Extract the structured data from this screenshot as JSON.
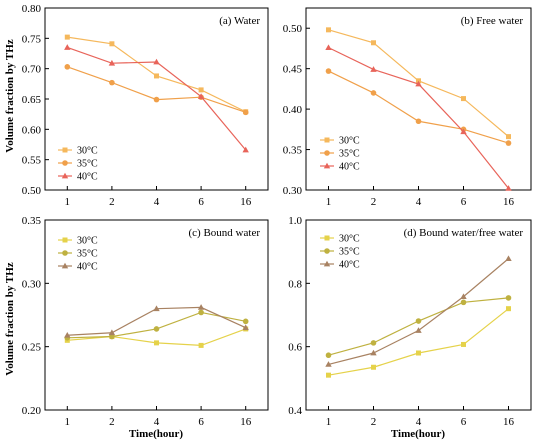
{
  "figure": {
    "ylabel_left": "Volume fraction by THz",
    "xlabel_bottom": "Time(hour)"
  },
  "colors": {
    "30C": "#F5B85C",
    "35C": "#F0A04A",
    "40C": "#E8645A",
    "b30C": "#E5D24A",
    "b35C": "#BFB140",
    "b40C": "#A88262"
  },
  "chart_data": [
    {
      "type": "line",
      "title": "(a) Water",
      "categories": [
        "1",
        "2",
        "4",
        "6",
        "16"
      ],
      "ylim": [
        0.5,
        0.8
      ],
      "yticks": [
        "0.50",
        "0.55",
        "0.60",
        "0.65",
        "0.70",
        "0.75",
        "0.80"
      ],
      "xlabel": "",
      "ylabel": "Volume fraction by THz",
      "legend": "bottom-left",
      "series": [
        {
          "name": "30°C",
          "marker": "square",
          "color": "#F5B85C",
          "values": [
            0.752,
            0.741,
            0.688,
            0.665,
            0.629
          ]
        },
        {
          "name": "35°C",
          "marker": "circle",
          "color": "#F0A04A",
          "values": [
            0.703,
            0.677,
            0.649,
            0.653,
            0.628
          ]
        },
        {
          "name": "40°C",
          "marker": "triangle",
          "color": "#E8645A",
          "values": [
            0.735,
            0.709,
            0.711,
            0.654,
            0.566
          ]
        }
      ]
    },
    {
      "type": "line",
      "title": "(b) Free water",
      "categories": [
        "1",
        "2",
        "4",
        "6",
        "16"
      ],
      "ylim": [
        0.3,
        0.525
      ],
      "yticks": [
        "0.30",
        "0.35",
        "0.40",
        "0.45",
        "0.50"
      ],
      "xlabel": "",
      "ylabel": "",
      "legend": "bottom-left",
      "series": [
        {
          "name": "30°C",
          "marker": "square",
          "color": "#F5B85C",
          "values": [
            0.498,
            0.482,
            0.435,
            0.413,
            0.366
          ]
        },
        {
          "name": "35°C",
          "marker": "circle",
          "color": "#F0A04A",
          "values": [
            0.447,
            0.42,
            0.385,
            0.375,
            0.358
          ]
        },
        {
          "name": "40°C",
          "marker": "triangle",
          "color": "#E8645A",
          "values": [
            0.476,
            0.449,
            0.431,
            0.372,
            0.302
          ]
        }
      ]
    },
    {
      "type": "line",
      "title": "(c) Bound water",
      "categories": [
        "1",
        "2",
        "4",
        "6",
        "16"
      ],
      "ylim": [
        0.2,
        0.35
      ],
      "yticks": [
        "0.20",
        "0.25",
        "0.30",
        "0.35"
      ],
      "xlabel": "Time(hour)",
      "ylabel": "Volume fraction by THz",
      "legend": "top-left",
      "series": [
        {
          "name": "30°C",
          "marker": "square",
          "color": "#E5D24A",
          "values": [
            0.255,
            0.258,
            0.253,
            0.251,
            0.264
          ]
        },
        {
          "name": "35°C",
          "marker": "circle",
          "color": "#BFB140",
          "values": [
            0.257,
            0.258,
            0.264,
            0.277,
            0.27
          ]
        },
        {
          "name": "40°C",
          "marker": "triangle",
          "color": "#A88262",
          "values": [
            0.259,
            0.261,
            0.28,
            0.281,
            0.265
          ]
        }
      ]
    },
    {
      "type": "line",
      "title": "(d) Bound water/free water",
      "categories": [
        "1",
        "2",
        "4",
        "6",
        "16"
      ],
      "ylim": [
        0.4,
        1.0
      ],
      "yticks": [
        "0.4",
        "0.6",
        "0.8",
        "1.0"
      ],
      "xlabel": "Time(hour)",
      "ylabel": "",
      "legend": "top-left",
      "series": [
        {
          "name": "30°C",
          "marker": "square",
          "color": "#E5D24A",
          "values": [
            0.51,
            0.535,
            0.58,
            0.607,
            0.72
          ]
        },
        {
          "name": "35°C",
          "marker": "circle",
          "color": "#BFB140",
          "values": [
            0.573,
            0.612,
            0.681,
            0.74,
            0.754
          ]
        },
        {
          "name": "40°C",
          "marker": "triangle",
          "color": "#A88262",
          "values": [
            0.544,
            0.58,
            0.651,
            0.758,
            0.878
          ]
        }
      ]
    }
  ]
}
